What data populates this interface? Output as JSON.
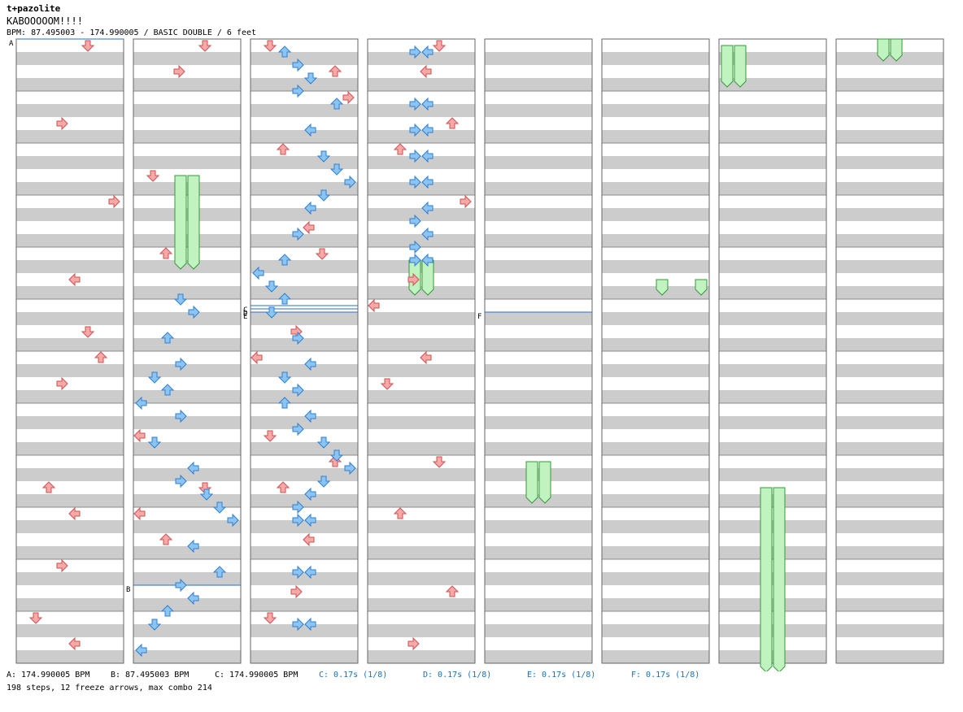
{
  "header": {
    "artist": "t+pazolite",
    "title": "KABOOOOOM!!!!",
    "bpm_info": "BPM: 87.495003 - 174.990005 / BASIC DOUBLE / 6 feet"
  },
  "chart_data": {
    "type": "step-chart",
    "columns": 8,
    "measures_per_column": 12,
    "beats_per_measure": 4,
    "lanes": [
      "L-left",
      "L-down",
      "L-up",
      "L-right",
      "R-left",
      "R-down",
      "R-up",
      "R-right"
    ],
    "lane_colors": {
      "p1": "#f7a9a9",
      "p2": "#8ec4f2",
      "freeze": "#bff3bf"
    },
    "markers": [
      {
        "label": "A",
        "measure": 0,
        "beat": 0
      },
      {
        "label": "B",
        "measure": 22,
        "beat": 2.0
      },
      {
        "label": "C",
        "measure": 29,
        "beat": 0.5
      },
      {
        "label": "D",
        "measure": 29,
        "beat": 0.75
      },
      {
        "label": "E",
        "measure": 29,
        "beat": 1.0
      },
      {
        "label": "F",
        "measure": 53,
        "beat": 1.0
      }
    ],
    "notes": [
      {
        "m": 0,
        "b": 0,
        "lane": 5,
        "c": "p1"
      },
      {
        "m": 1,
        "b": 2,
        "lane": 3,
        "c": "p1"
      },
      {
        "m": 3,
        "b": 0,
        "lane": 7,
        "c": "p1"
      },
      {
        "m": 4,
        "b": 2,
        "lane": 4,
        "c": "p1"
      },
      {
        "m": 5,
        "b": 2,
        "lane": 5,
        "c": "p1"
      },
      {
        "m": 6,
        "b": 0,
        "lane": 6,
        "c": "p1"
      },
      {
        "m": 6,
        "b": 2,
        "lane": 3,
        "c": "p1"
      },
      {
        "m": 8,
        "b": 2,
        "lane": 2,
        "c": "p1"
      },
      {
        "m": 9,
        "b": 0,
        "lane": 4,
        "c": "p1"
      },
      {
        "m": 10,
        "b": 0,
        "lane": 3,
        "c": "p1"
      },
      {
        "m": 11,
        "b": 0,
        "lane": 1,
        "c": "p1"
      },
      {
        "m": 11,
        "b": 2,
        "lane": 4,
        "c": "p1"
      },
      {
        "m": 12,
        "b": 0,
        "lane": 5,
        "c": "p1"
      },
      {
        "m": 12,
        "b": 2,
        "lane": 3,
        "c": "p1"
      },
      {
        "m": 14,
        "b": 2,
        "lane": 1,
        "c": "p1"
      },
      {
        "m": 16,
        "b": 0,
        "lane": 2,
        "c": "p1"
      },
      {
        "m": 19,
        "b": 2,
        "lane": 0,
        "c": "p1"
      },
      {
        "m": 20,
        "b": 2,
        "lane": 5,
        "c": "p1"
      },
      {
        "m": 21,
        "b": 0,
        "lane": 0,
        "c": "p1"
      },
      {
        "m": 21,
        "b": 2,
        "lane": 2,
        "c": "p1"
      },
      {
        "m": 24,
        "b": 0,
        "lane": 1,
        "c": "p1"
      },
      {
        "m": 24,
        "b": 2,
        "lane": 6,
        "c": "p1"
      },
      {
        "m": 25,
        "b": 0,
        "lane": 7,
        "c": "p1"
      },
      {
        "m": 26,
        "b": 0,
        "lane": 2,
        "c": "p1"
      },
      {
        "m": 27,
        "b": 2,
        "lane": 4,
        "c": "p1"
      },
      {
        "m": 28,
        "b": 0,
        "lane": 5,
        "c": "p1"
      },
      {
        "m": 29,
        "b": 2,
        "lane": 3,
        "c": "p1"
      },
      {
        "m": 30,
        "b": 0,
        "lane": 0,
        "c": "p1"
      },
      {
        "m": 31,
        "b": 2,
        "lane": 1,
        "c": "p1"
      },
      {
        "m": 32,
        "b": 0,
        "lane": 6,
        "c": "p1"
      },
      {
        "m": 32,
        "b": 2,
        "lane": 2,
        "c": "p1"
      },
      {
        "m": 33,
        "b": 2,
        "lane": 4,
        "c": "p1"
      },
      {
        "m": 34,
        "b": 2,
        "lane": 3,
        "c": "p1"
      },
      {
        "m": 35,
        "b": 0,
        "lane": 1,
        "c": "p1"
      },
      {
        "m": 36,
        "b": 0,
        "lane": 5,
        "c": "p1"
      },
      {
        "m": 36,
        "b": 2,
        "lane": 4,
        "c": "p1"
      },
      {
        "m": 37,
        "b": 2,
        "lane": 6,
        "c": "p1"
      },
      {
        "m": 38,
        "b": 0,
        "lane": 2,
        "c": "p1"
      },
      {
        "m": 39,
        "b": 0,
        "lane": 7,
        "c": "p1"
      },
      {
        "m": 40,
        "b": 2,
        "lane": 3,
        "c": "p1"
      },
      {
        "m": 41,
        "b": 0,
        "lane": 0,
        "c": "p1"
      },
      {
        "m": 42,
        "b": 0,
        "lane": 4,
        "c": "p1"
      },
      {
        "m": 42,
        "b": 2,
        "lane": 1,
        "c": "p1"
      },
      {
        "m": 44,
        "b": 0,
        "lane": 5,
        "c": "p1"
      },
      {
        "m": 45,
        "b": 0,
        "lane": 2,
        "c": "p1"
      },
      {
        "m": 46,
        "b": 2,
        "lane": 6,
        "c": "p1"
      },
      {
        "m": 47,
        "b": 2,
        "lane": 3,
        "c": "p1"
      }
    ],
    "freezes": [
      {
        "col": 1,
        "x": [
          222,
          238
        ],
        "y1": 216,
        "y2": 328
      },
      {
        "col": 3,
        "x": [
          510,
          526
        ],
        "y1": 320,
        "y2": 360
      },
      {
        "col": 4,
        "x": [
          654,
          670
        ],
        "y1": 568,
        "y2": 616
      },
      {
        "col": 5,
        "x": [
          814
        ],
        "y1": 344,
        "y2": 360
      },
      {
        "col": 5,
        "x": [
          862
        ],
        "y1": 344,
        "y2": 360
      },
      {
        "col": 6,
        "x": [
          894,
          910
        ],
        "y1": 56,
        "y2": 104
      },
      {
        "col": 6,
        "x": [
          942,
          958
        ],
        "y1": 600,
        "y2": 824
      },
      {
        "col": 7,
        "x": [
          1086,
          1102
        ],
        "y1": 48,
        "y2": 72
      }
    ]
  },
  "legend": {
    "bpm_a": "A: 174.990005 BPM",
    "bpm_b": "B: 87.495003 BPM",
    "bpm_c": "C: 174.990005 BPM",
    "stop_c": "C: 0.17s (1/8)",
    "stop_d": "D: 0.17s (1/8)",
    "stop_e": "E: 0.17s (1/8)",
    "stop_f": "F: 0.17s (1/8)"
  },
  "stats": "198 steps, 12 freeze arrows, max combo 214"
}
